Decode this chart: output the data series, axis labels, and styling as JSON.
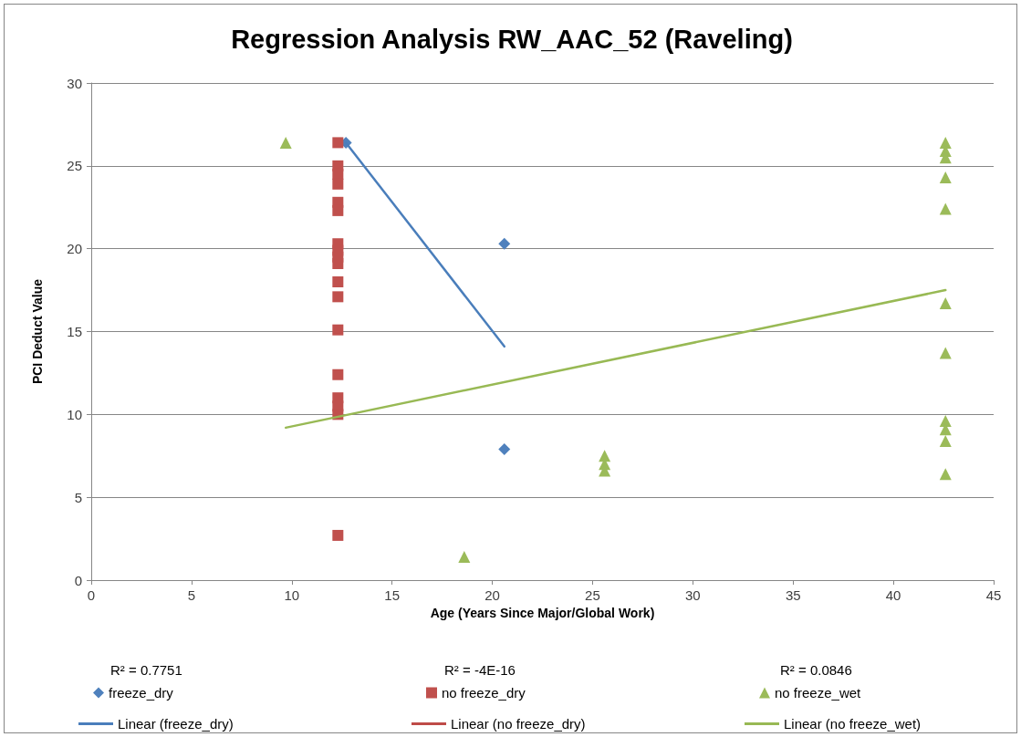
{
  "chart_data": {
    "type": "scatter",
    "title": "Regression Analysis RW_AAC_52 (Raveling)",
    "xlabel": "Age (Years Since Major/Global Work)",
    "ylabel": "PCI Deduct Value",
    "xlim": [
      0,
      45
    ],
    "xticks": [
      0,
      5,
      10,
      15,
      20,
      25,
      30,
      35,
      40,
      45
    ],
    "ylim": [
      0,
      30
    ],
    "yticks": [
      0,
      5,
      10,
      15,
      20,
      25,
      30
    ],
    "grid": "y",
    "legend": "bottom",
    "annotations": [
      "R² = 0.7751",
      "R² = -4E-16",
      "R² = 0.0846"
    ],
    "series": [
      {
        "name": "freeze_dry",
        "color": "#4f81bd",
        "marker": "diamond",
        "x": [
          12.7,
          20.6,
          20.6
        ],
        "values": [
          26.4,
          20.3,
          7.9
        ]
      },
      {
        "name": "no freeze_dry",
        "color": "#c0504d",
        "marker": "square",
        "x": [
          12.3,
          12.3,
          12.3,
          12.3,
          12.3,
          12.3,
          12.3,
          12.3,
          12.3,
          12.3,
          12.3,
          12.3,
          12.3,
          12.3,
          12.3,
          12.3,
          12.3,
          12.3
        ],
        "values": [
          26.4,
          25.0,
          24.5,
          23.9,
          22.8,
          22.3,
          20.3,
          19.9,
          19.5,
          19.1,
          18.0,
          17.1,
          15.1,
          12.4,
          11.0,
          10.5,
          10.0,
          2.7
        ]
      },
      {
        "name": "no freeze_wet",
        "color": "#9bbb59",
        "marker": "triangle",
        "x": [
          9.7,
          18.6,
          25.6,
          25.6,
          25.6,
          42.6,
          42.6,
          42.6,
          42.6,
          42.6,
          42.6,
          42.6,
          42.6,
          42.6,
          42.6,
          42.6
        ],
        "values": [
          26.4,
          1.4,
          7.5,
          7.0,
          6.6,
          26.4,
          25.9,
          25.5,
          24.3,
          22.4,
          16.7,
          13.7,
          9.6,
          9.1,
          8.4,
          6.4
        ]
      },
      {
        "name": "Linear (freeze_dry)",
        "type": "line",
        "color": "#4a7ebb",
        "marker": "none",
        "line_style": "solid",
        "x": [
          12.7,
          20.6
        ],
        "values": [
          26.4,
          14.1
        ]
      },
      {
        "name": "Linear (no freeze_dry)",
        "type": "line",
        "color": "#be4b48",
        "marker": "none",
        "line_style": "solid"
      },
      {
        "name": "Linear (no freeze_wet)",
        "type": "line",
        "color": "#98b954",
        "marker": "none",
        "line_style": "solid",
        "x": [
          9.7,
          42.6
        ],
        "values": [
          9.2,
          17.5
        ]
      }
    ]
  }
}
